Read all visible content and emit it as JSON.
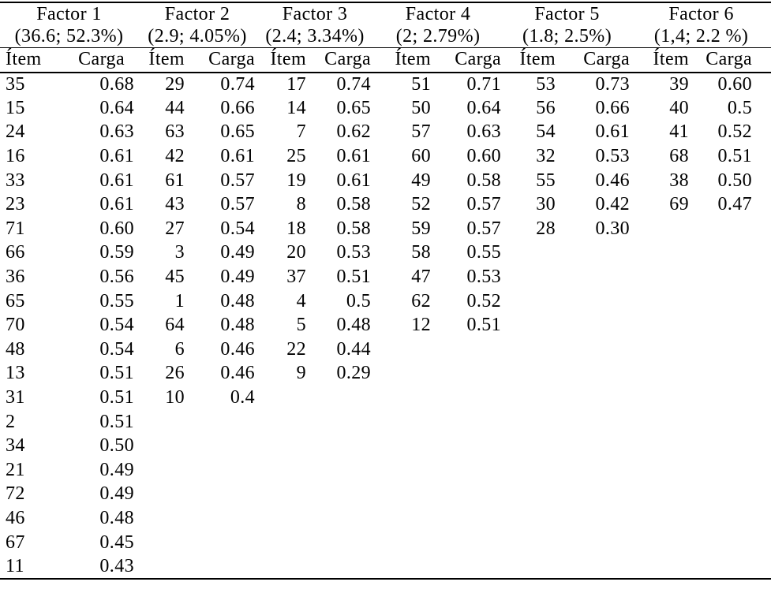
{
  "page": {
    "background_color": "#ffffff",
    "text_color": "#000000"
  },
  "table": {
    "subheaders": {
      "item": "Ítem",
      "load": "Carga"
    },
    "factors": [
      {
        "name": "Factor 1",
        "variance": "(36.6; 52.3%)",
        "rows": [
          [
            "35",
            "0.68"
          ],
          [
            "15",
            "0.64"
          ],
          [
            "24",
            "0.63"
          ],
          [
            "16",
            "0.61"
          ],
          [
            "33",
            "0.61"
          ],
          [
            "23",
            "0.61"
          ],
          [
            "71",
            "0.60"
          ],
          [
            "66",
            "0.59"
          ],
          [
            "36",
            "0.56"
          ],
          [
            "65",
            "0.55"
          ],
          [
            "70",
            "0.54"
          ],
          [
            "48",
            "0.54"
          ],
          [
            "13",
            "0.51"
          ],
          [
            "31",
            "0.51"
          ],
          [
            "2",
            "0.51"
          ],
          [
            "34",
            "0.50"
          ],
          [
            "21",
            "0.49"
          ],
          [
            "72",
            "0.49"
          ],
          [
            "46",
            "0.48"
          ],
          [
            "67",
            "0.45"
          ],
          [
            "11",
            "0.43"
          ]
        ]
      },
      {
        "name": "Factor 2",
        "variance": "(2.9; 4.05%)",
        "rows": [
          [
            "29",
            "0.74"
          ],
          [
            "44",
            "0.66"
          ],
          [
            "63",
            "0.65"
          ],
          [
            "42",
            "0.61"
          ],
          [
            "61",
            "0.57"
          ],
          [
            "43",
            "0.57"
          ],
          [
            "27",
            "0.54"
          ],
          [
            "3",
            "0.49"
          ],
          [
            "45",
            "0.49"
          ],
          [
            "1",
            "0.48"
          ],
          [
            "64",
            "0.48"
          ],
          [
            "6",
            "0.46"
          ],
          [
            "26",
            "0.46"
          ],
          [
            "10",
            "0.4"
          ]
        ]
      },
      {
        "name": "Factor 3",
        "variance": "(2.4; 3.34%)",
        "rows": [
          [
            "17",
            "0.74"
          ],
          [
            "14",
            "0.65"
          ],
          [
            "7",
            "0.62"
          ],
          [
            "25",
            "0.61"
          ],
          [
            "19",
            "0.61"
          ],
          [
            "8",
            "0.58"
          ],
          [
            "18",
            "0.58"
          ],
          [
            "20",
            "0.53"
          ],
          [
            "37",
            "0.51"
          ],
          [
            "4",
            "0.5"
          ],
          [
            "5",
            "0.48"
          ],
          [
            "22",
            "0.44"
          ],
          [
            "9",
            "0.29"
          ]
        ]
      },
      {
        "name": "Factor 4",
        "variance": "(2; 2.79%)",
        "rows": [
          [
            "51",
            "0.71"
          ],
          [
            "50",
            "0.64"
          ],
          [
            "57",
            "0.63"
          ],
          [
            "60",
            "0.60"
          ],
          [
            "49",
            "0.58"
          ],
          [
            "52",
            "0.57"
          ],
          [
            "59",
            "0.57"
          ],
          [
            "58",
            "0.55"
          ],
          [
            "47",
            "0.53"
          ],
          [
            "62",
            "0.52"
          ],
          [
            "12",
            "0.51"
          ]
        ]
      },
      {
        "name": "Factor 5",
        "variance": "(1.8; 2.5%)",
        "rows": [
          [
            "53",
            "0.73"
          ],
          [
            "56",
            "0.66"
          ],
          [
            "54",
            "0.61"
          ],
          [
            "32",
            "0.53"
          ],
          [
            "55",
            "0.46"
          ],
          [
            "30",
            "0.42"
          ],
          [
            "28",
            "0.30"
          ]
        ]
      },
      {
        "name": "Factor 6",
        "variance": "(1,4; 2.2 %)",
        "rows": [
          [
            "39",
            "0.60"
          ],
          [
            "40",
            "0.5"
          ],
          [
            "41",
            "0.52"
          ],
          [
            "68",
            "0.51"
          ],
          [
            "38",
            "0.50"
          ],
          [
            "69",
            "0.47"
          ]
        ]
      }
    ]
  }
}
